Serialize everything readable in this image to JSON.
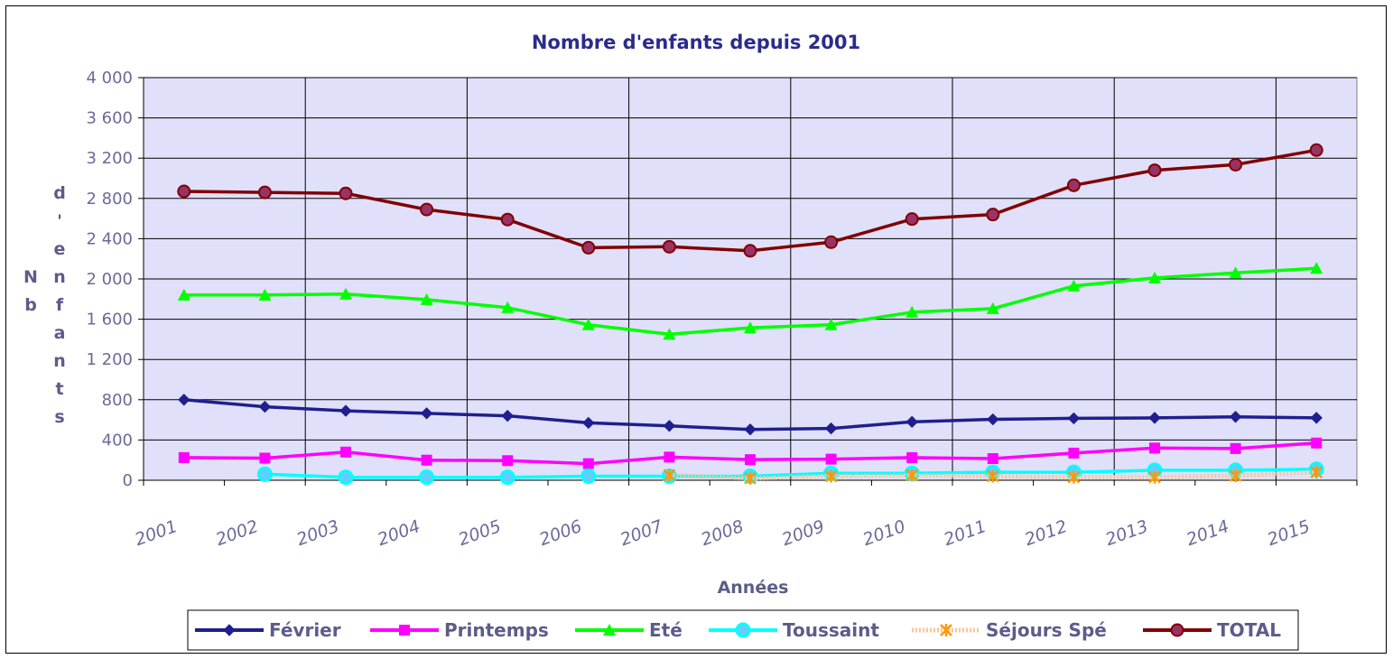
{
  "chart_data": {
    "type": "line",
    "title": "Nombre d'enfants depuis 2001",
    "xlabel": "Années",
    "ylabel": "Nb d'enfants",
    "ylim": [
      0,
      4000
    ],
    "yticks": [
      "0",
      "400",
      "800",
      "1 200",
      "1 600",
      "2 000",
      "2 400",
      "2 800",
      "3 200",
      "3 600",
      "4 000"
    ],
    "categories": [
      "2001",
      "2002",
      "2003",
      "2004",
      "2005",
      "2006",
      "2007",
      "2008",
      "2009",
      "2010",
      "2011",
      "2012",
      "2013",
      "2014",
      "2015"
    ],
    "grid": true,
    "legend_position": "bottom",
    "series": [
      {
        "name": "Février",
        "color": "#1f1f8f",
        "marker": "diamond",
        "values": [
          800,
          730,
          690,
          665,
          640,
          570,
          540,
          505,
          515,
          580,
          605,
          615,
          620,
          630,
          620
        ]
      },
      {
        "name": "Printemps",
        "color": "#ff00ff",
        "marker": "square",
        "values": [
          225,
          220,
          280,
          200,
          195,
          165,
          230,
          205,
          210,
          225,
          215,
          270,
          320,
          315,
          370
        ]
      },
      {
        "name": "Eté",
        "color": "#00ff00",
        "marker": "triangle",
        "values": [
          1840,
          1840,
          1850,
          1795,
          1715,
          1545,
          1450,
          1515,
          1545,
          1670,
          1705,
          1930,
          2010,
          2060,
          2105
        ]
      },
      {
        "name": "Toussaint",
        "color": "#00ffff",
        "marker": "circle",
        "values": [
          null,
          60,
          30,
          30,
          30,
          40,
          40,
          40,
          70,
          70,
          80,
          80,
          100,
          100,
          110
        ]
      },
      {
        "name": "Séjours Spé",
        "color": "#ff9900",
        "marker": "asterisk",
        "dashed": true,
        "values": [
          null,
          null,
          null,
          null,
          null,
          null,
          50,
          20,
          40,
          50,
          40,
          30,
          30,
          45,
          80
        ]
      },
      {
        "name": "TOTAL",
        "color": "#800000",
        "marker": "circle-large",
        "values": [
          2870,
          2860,
          2850,
          2690,
          2590,
          2310,
          2320,
          2280,
          2365,
          2595,
          2640,
          2930,
          3080,
          3135,
          3280
        ]
      }
    ]
  },
  "ylabel_columns": [
    [
      "N",
      "b"
    ],
    [
      "d",
      "'",
      "e",
      "n",
      "f",
      "a",
      "n",
      "t",
      "s"
    ]
  ]
}
